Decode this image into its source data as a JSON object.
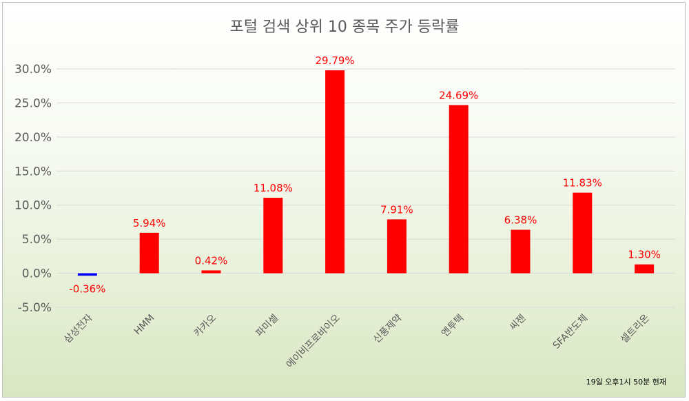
{
  "chart_data": {
    "type": "bar",
    "title": "포털 검색 상위 10 종목 주가 등락률",
    "categories": [
      "삼성전자",
      "HMM",
      "카카오",
      "파미셀",
      "에이비프로바이오",
      "신풍제약",
      "엔투텍",
      "씨젠",
      "SFA반도체",
      "셀트리온"
    ],
    "values": [
      -0.36,
      5.94,
      0.42,
      11.08,
      29.79,
      7.91,
      24.69,
      6.38,
      11.83,
      1.3
    ],
    "data_labels": [
      "-0.36%",
      "5.94%",
      "0.42%",
      "11.08%",
      "29.79%",
      "7.91%",
      "24.69%",
      "6.38%",
      "11.83%",
      "1.30%"
    ],
    "y_ticks": [
      "-5.0%",
      "0.0%",
      "5.0%",
      "10.0%",
      "15.0%",
      "20.0%",
      "25.0%",
      "30.0%"
    ],
    "ylim": [
      -5,
      30
    ],
    "grid": true,
    "colors": {
      "positive": "#ff0000",
      "negative": "#0000ff",
      "grid": "#d9d9d9"
    },
    "footnote": "19일 오후1시 50분 현재"
  }
}
